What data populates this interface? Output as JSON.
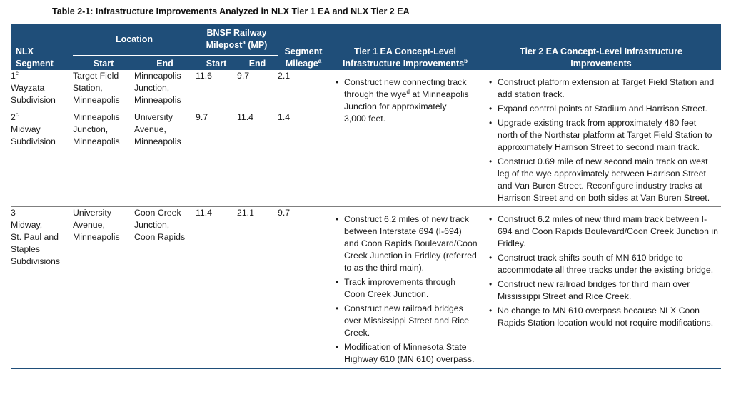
{
  "caption": "Table 2-1: Infrastructure Improvements Analyzed in NLX Tier 1 EA and NLX Tier 2 EA",
  "headers": {
    "segment_line1": "NLX",
    "segment_line2": "Segment",
    "location": "Location",
    "bnsf_line1": "BNSF Railway",
    "bnsf_line2a": "Milepost",
    "bnsf_sup": "a",
    "bnsf_line2b": " (MP)",
    "start": "Start",
    "end": "End",
    "mileage_line1": "Segment",
    "mileage_line2": "Mileage",
    "mileage_sup": "a",
    "tier1_line1": "Tier 1 EA Concept-Level",
    "tier1_line2": "Infrastructure Improvements",
    "tier1_sup": "b",
    "tier2_line1": "Tier 2 EA Concept-Level Infrastructure",
    "tier2_line2": "Improvements"
  },
  "rows": [
    {
      "num": "1",
      "num_sup": "c",
      "name_l1": "Wayzata",
      "name_l2": "Subdivision",
      "loc_start": [
        "Target Field",
        "Station,",
        "Minneapolis"
      ],
      "loc_end": [
        "Minneapolis",
        "Junction,",
        "Minneapolis"
      ],
      "mp_start": "11.6",
      "mp_end": "9.7",
      "mileage": "2.1"
    },
    {
      "num": "2",
      "num_sup": "c",
      "name_l1": "Midway",
      "name_l2": "Subdivision",
      "loc_start": [
        "Minneapolis",
        "Junction,",
        "Minneapolis"
      ],
      "loc_end": [
        "University",
        "Avenue,",
        "Minneapolis"
      ],
      "mp_start": "9.7",
      "mp_end": "11.4",
      "mileage": "1.4"
    },
    {
      "num": "3",
      "name_lines": [
        "Midway,",
        "St. Paul and",
        "Staples",
        "Subdivisions"
      ],
      "loc_start": [
        "University",
        "Avenue,",
        "Minneapolis"
      ],
      "loc_end": [
        "Coon Creek",
        "Junction,",
        "Coon Rapids"
      ],
      "mp_start": "11.4",
      "mp_end": "21.1",
      "mileage": "9.7"
    }
  ],
  "tier1_seg12": {
    "a": "Construct new connecting track",
    "b": "through the wye",
    "b_sup": "d",
    "c": " at Minneapolis",
    "d": "Junction for approximately",
    "e": "3,000 feet."
  },
  "tier2_seg12": [
    "Construct platform extension at Target Field Station and add station track.",
    "Expand control points at Stadium and Harrison Street.",
    "Upgrade existing track from approximately 480 feet north of the Northstar platform at Target Field Station to approximately Harrison Street to second main track.",
    "Construct 0.69 mile of new second main track on west leg of the wye approximately between Harrison Street and Van Buren Street. Reconfigure industry tracks at Harrison Street and on both sides at Van Buren Street."
  ],
  "tier1_seg3": [
    "Construct 6.2 miles of new track between Interstate 694 (I-694) and Coon Rapids Boulevard/Coon Creek Junction in Fridley (referred to as the third main).",
    "Track improvements through Coon Creek Junction.",
    "Construct new railroad bridges over Mississippi Street and Rice Creek.",
    "Modification of Minnesota State Highway 610 (MN 610) overpass."
  ],
  "tier2_seg3": [
    "Construct 6.2 miles of new third main track between I-694 and Coon Rapids Boulevard/Coon Creek Junction in Fridley.",
    "Construct track shifts south of MN 610 bridge to accommodate all three tracks under the existing bridge.",
    "Construct new railroad bridges for third main over Mississippi Street and Rice Creek.",
    "No change to MN 610 overpass because NLX Coon Rapids Station location would not require modifications."
  ]
}
